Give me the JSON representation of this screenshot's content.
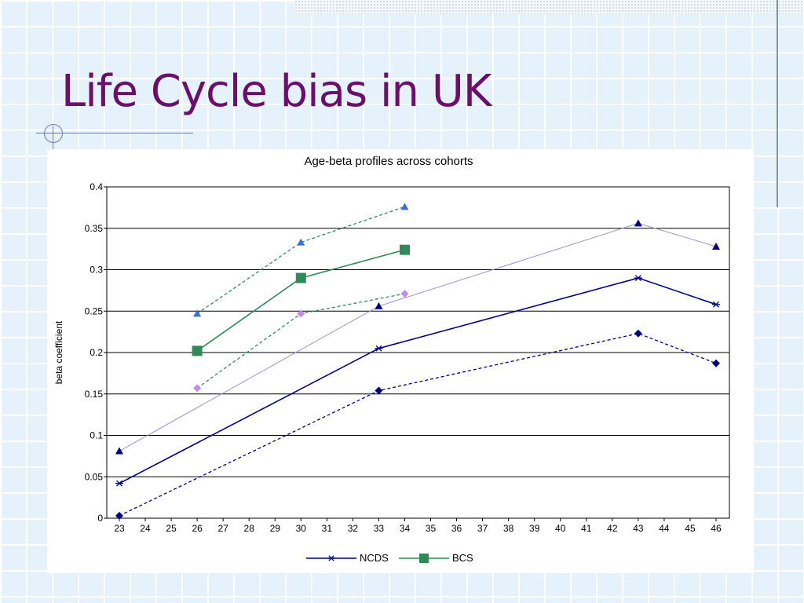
{
  "slide": {
    "title": "Life Cycle bias in UK"
  },
  "chart_data": {
    "type": "line",
    "title": "Age-beta profiles across cohorts",
    "xlabel": "",
    "ylabel": "beta coefficient",
    "xlim": [
      23,
      46
    ],
    "ylim": [
      0,
      0.4
    ],
    "x_ticks": [
      23,
      24,
      25,
      26,
      27,
      28,
      29,
      30,
      31,
      32,
      33,
      34,
      35,
      36,
      37,
      38,
      39,
      40,
      41,
      42,
      43,
      44,
      45,
      46
    ],
    "y_ticks": [
      0,
      0.05,
      0.1,
      0.15,
      0.2,
      0.25,
      0.3,
      0.35,
      0.4
    ],
    "y_tick_labels": [
      "0",
      "0.05",
      "0.1",
      "0.15",
      "0.2",
      "0.25",
      "0.3",
      "0.35",
      "0.4"
    ],
    "grid": "horizontal",
    "legend_position": "bottom",
    "series": [
      {
        "name": "NCDS",
        "color": "#000080",
        "dash": "solid",
        "width": 1.6,
        "marker": "asterisk",
        "in_legend": true,
        "points": [
          [
            23,
            0.042
          ],
          [
            33,
            0.205
          ],
          [
            43,
            0.29
          ],
          [
            46,
            0.258
          ]
        ]
      },
      {
        "color": "#000080",
        "dash": "dashed",
        "width": 1.3,
        "marker": "diamond",
        "points": [
          [
            23,
            0.003
          ],
          [
            33,
            0.154
          ],
          [
            43,
            0.223
          ],
          [
            46,
            0.187
          ]
        ]
      },
      {
        "color": "#9a94d0",
        "dash": "solid",
        "width": 1.0,
        "marker": "triangle",
        "marker_color": "#000080",
        "points": [
          [
            23,
            0.081
          ],
          [
            33,
            0.256
          ],
          [
            43,
            0.356
          ],
          [
            46,
            0.328
          ]
        ]
      },
      {
        "name": "BCS",
        "color": "#2e8b57",
        "dash": "solid",
        "width": 1.6,
        "marker": "square",
        "in_legend": true,
        "points": [
          [
            26,
            0.202
          ],
          [
            30,
            0.29
          ],
          [
            34,
            0.324
          ]
        ]
      },
      {
        "color": "#2e8b57",
        "dash": "dashed",
        "width": 1.3,
        "marker": "triangle",
        "marker_color": "#3a6fd8",
        "points": [
          [
            26,
            0.247
          ],
          [
            30,
            0.333
          ],
          [
            34,
            0.376
          ]
        ]
      },
      {
        "color": "#2e8b57",
        "dash": "dashed",
        "width": 1.3,
        "marker": "diamond",
        "marker_color": "#c58be8",
        "points": [
          [
            26,
            0.157
          ],
          [
            30,
            0.247
          ],
          [
            34,
            0.271
          ]
        ]
      }
    ]
  }
}
